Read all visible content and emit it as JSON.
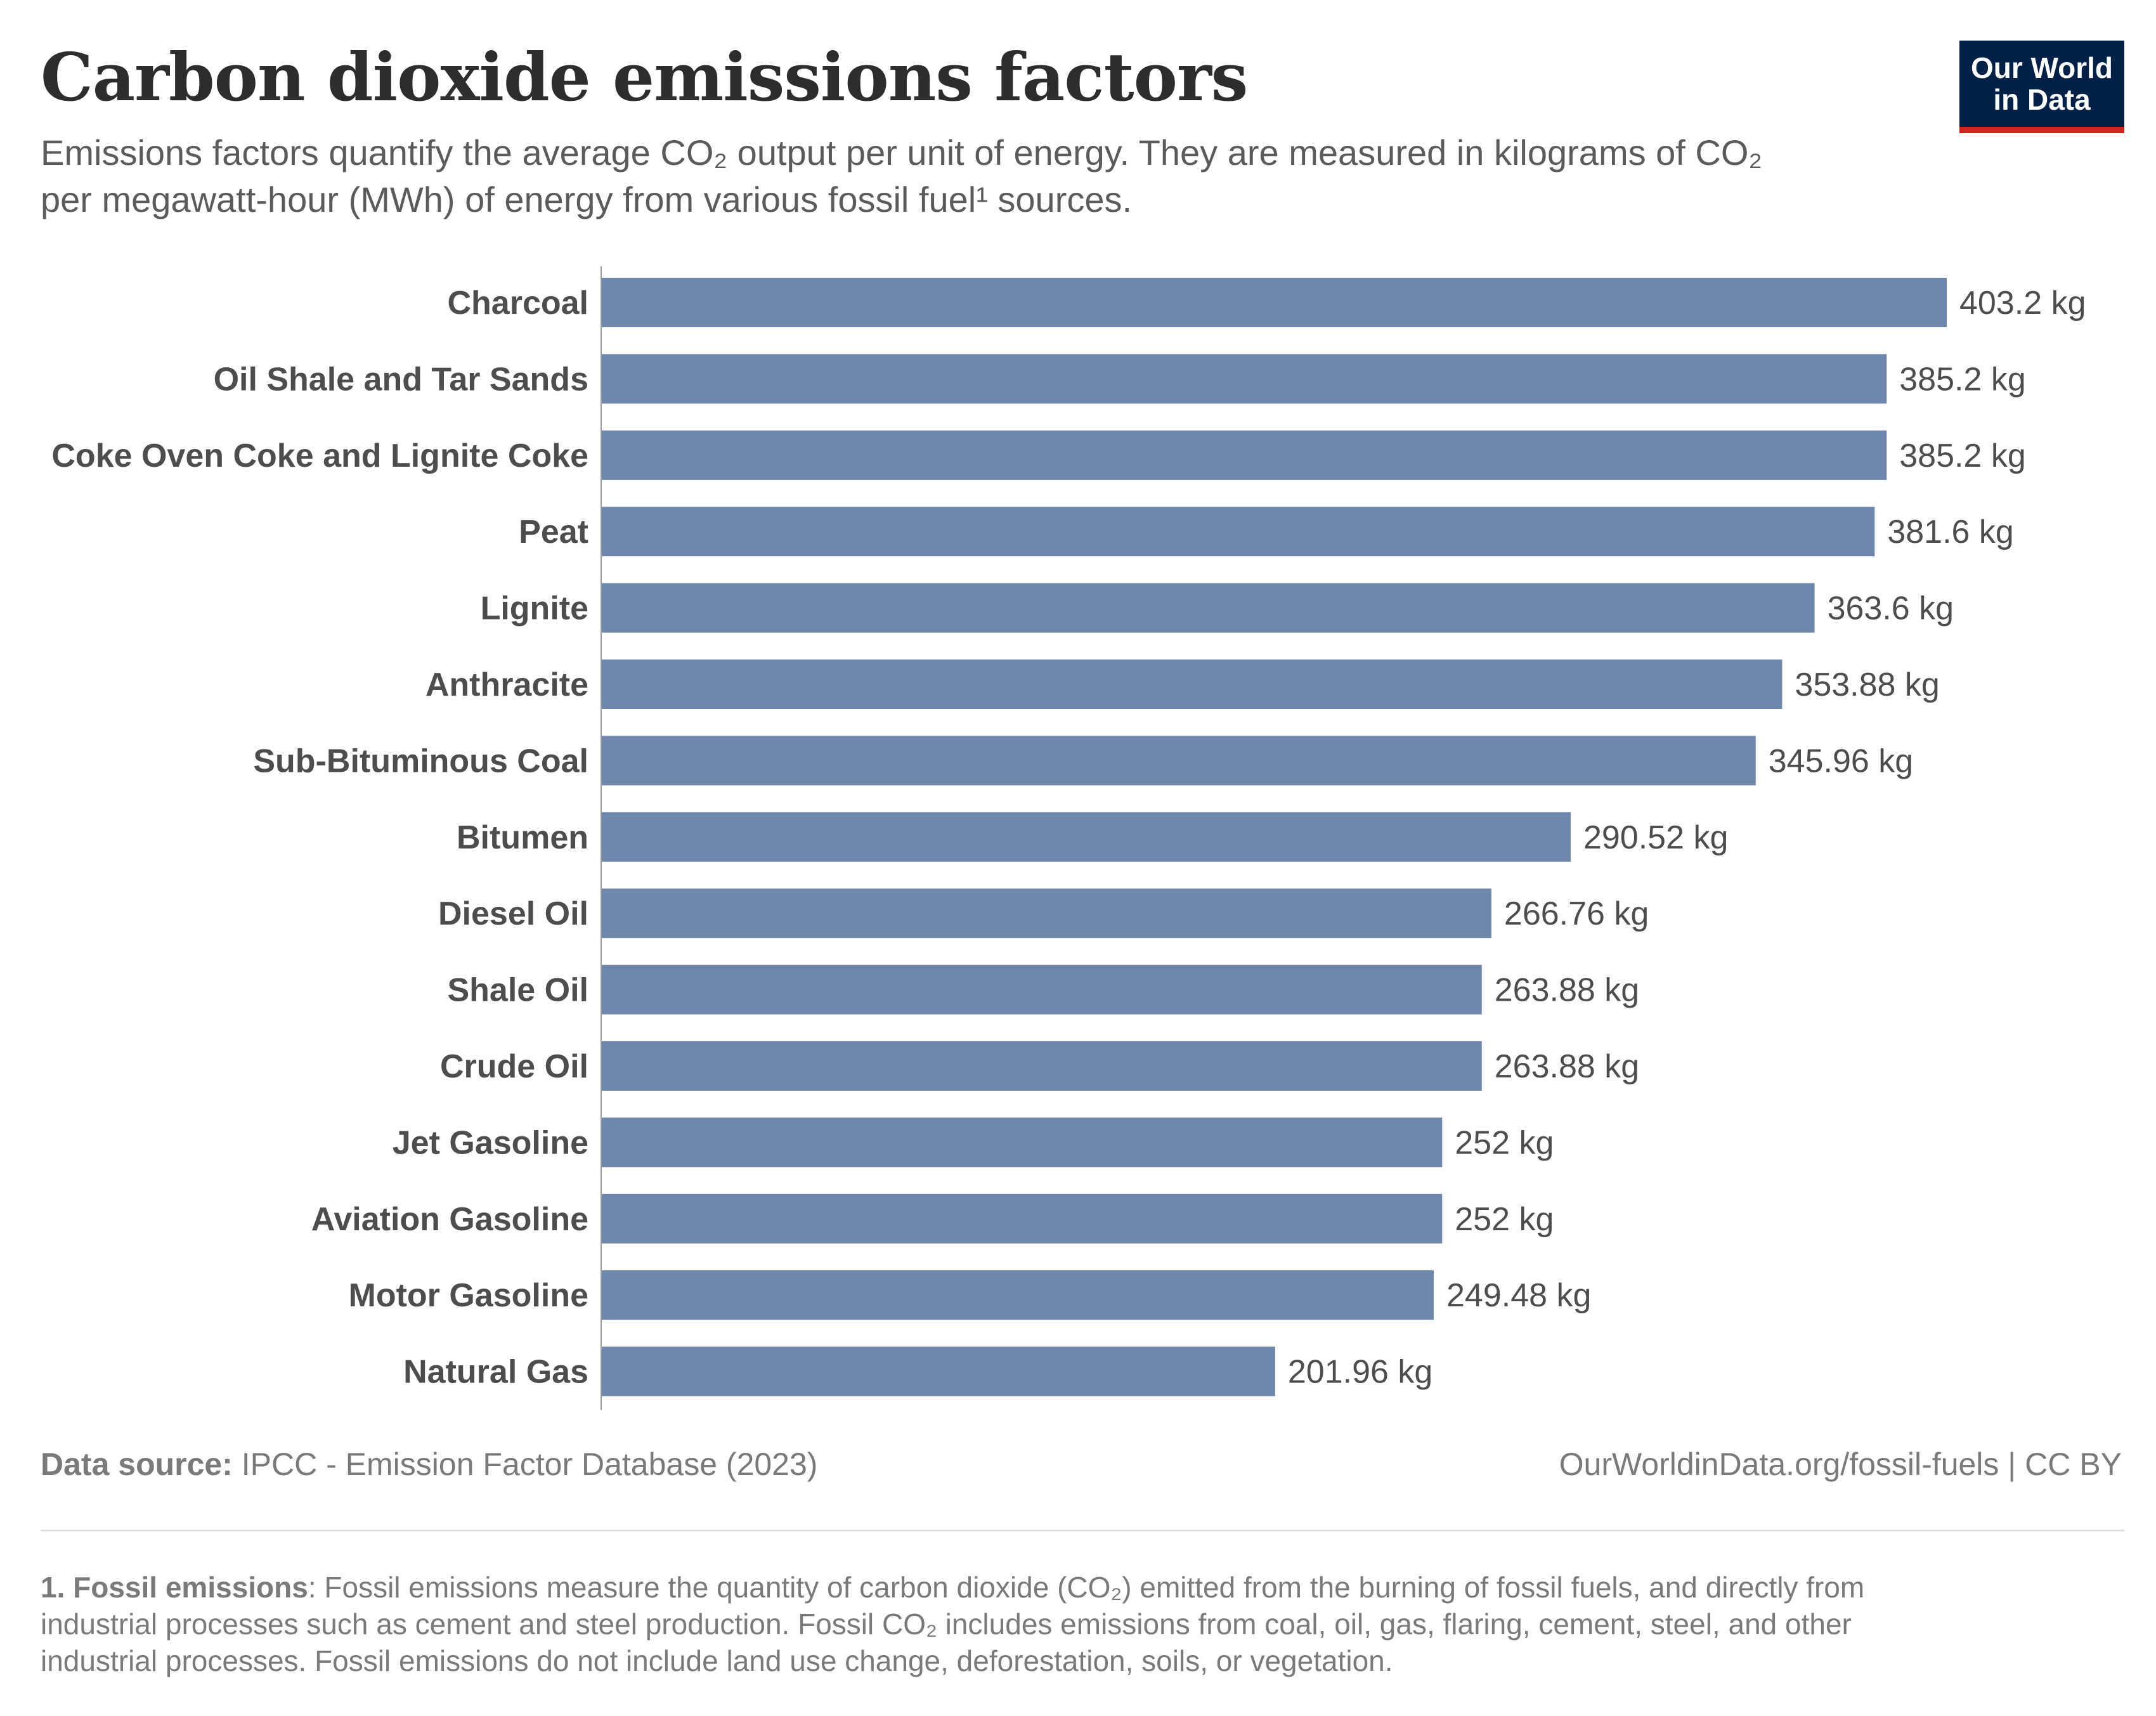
{
  "header": {
    "title": "Carbon dioxide emissions factors",
    "subtitle_line1": "Emissions factors quantify the average CO₂ output per unit of energy. They are measured in kilograms of CO₂",
    "subtitle_line2": "per megawatt-hour (MWh) of energy from various fossil fuel¹ sources."
  },
  "logo": {
    "line1": "Our World",
    "line2": "in Data",
    "background_color": "#002147",
    "accent_color": "#ce261e"
  },
  "chart_data": {
    "type": "bar",
    "orientation": "horizontal",
    "title": "Carbon dioxide emissions factors",
    "xlabel": "",
    "ylabel": "",
    "value_unit": "kg",
    "xlim": [
      0,
      403.2
    ],
    "grid": false,
    "bar_color": "#6f87ad",
    "categories": [
      "Charcoal",
      "Oil Shale and Tar Sands",
      "Coke Oven Coke and Lignite Coke",
      "Peat",
      "Lignite",
      "Anthracite",
      "Sub-Bituminous Coal",
      "Bitumen",
      "Diesel Oil",
      "Shale Oil",
      "Crude Oil",
      "Jet Gasoline",
      "Aviation Gasoline",
      "Motor Gasoline",
      "Natural Gas"
    ],
    "values": [
      403.2,
      385.2,
      385.2,
      381.6,
      363.6,
      353.88,
      345.96,
      290.52,
      266.76,
      263.88,
      263.88,
      252,
      252,
      249.48,
      201.96
    ],
    "value_labels": [
      "403.2 kg",
      "385.2 kg",
      "385.2 kg",
      "381.6 kg",
      "363.6 kg",
      "353.88 kg",
      "345.96 kg",
      "290.52 kg",
      "266.76 kg",
      "263.88 kg",
      "263.88 kg",
      "252 kg",
      "252 kg",
      "249.48 kg",
      "201.96 kg"
    ]
  },
  "footer": {
    "source_label": "Data source:",
    "source_text": " IPCC - Emission Factor Database (2023)",
    "site": "OurWorldinData.org/fossil-fuels | CC BY",
    "footnote_label": "1. Fossil emissions",
    "footnote_line1": ": Fossil emissions measure the quantity of carbon dioxide (CO₂) emitted from the burning of fossil fuels, and directly from",
    "footnote_line2": "industrial processes such as cement and steel production. Fossil CO₂ includes emissions from coal, oil, gas, flaring, cement, steel, and other",
    "footnote_line3": "industrial processes. Fossil emissions do not include land use change, deforestation, soils, or vegetation."
  }
}
